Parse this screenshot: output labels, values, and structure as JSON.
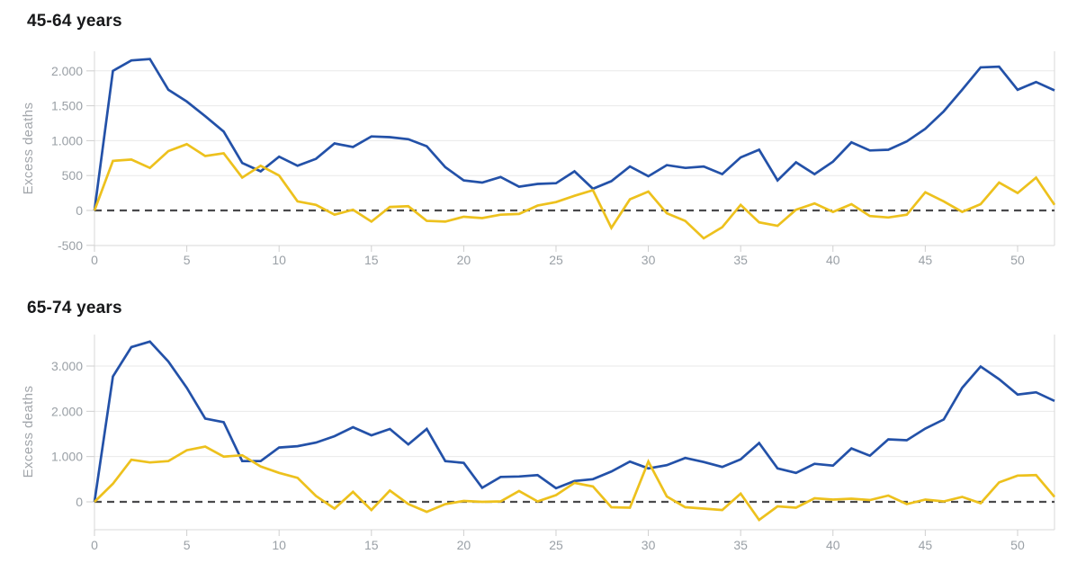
{
  "page": {
    "background": "#ffffff"
  },
  "chart_data": [
    {
      "type": "line",
      "title": "45-64 years",
      "xlabel": "",
      "ylabel": "Excess deaths",
      "x_range": [
        0,
        52
      ],
      "x_ticks": [
        0,
        5,
        10,
        15,
        20,
        25,
        30,
        35,
        40,
        45,
        50
      ],
      "y_ticks": [
        {
          "value": 2000,
          "label": "2.000"
        },
        {
          "value": 1500,
          "label": "1.500"
        },
        {
          "value": 1000,
          "label": "1.000"
        },
        {
          "value": 500,
          "label": "500"
        },
        {
          "value": 0,
          "label": "0"
        },
        {
          "value": -500,
          "label": "-500"
        }
      ],
      "grid_values": [
        500,
        1000,
        1500,
        2000
      ],
      "ylim": [
        -500,
        2220
      ],
      "zero_line_dashed": true,
      "legend": "none",
      "series": [
        {
          "name": "blue",
          "color": "#2351a8",
          "values": [
            0,
            2000,
            2150,
            2170,
            1730,
            1560,
            1350,
            1130,
            680,
            560,
            770,
            640,
            740,
            960,
            910,
            1060,
            1050,
            1020,
            920,
            620,
            430,
            400,
            480,
            340,
            380,
            390,
            560,
            310,
            420,
            630,
            490,
            650,
            610,
            630,
            520,
            760,
            870,
            430,
            690,
            520,
            700,
            975,
            860,
            870,
            990,
            1170,
            1420,
            1730,
            2050,
            2060,
            1730,
            1840,
            1720
          ]
        },
        {
          "name": "yellow",
          "color": "#edc11d",
          "values": [
            0,
            710,
            730,
            610,
            850,
            950,
            780,
            820,
            470,
            640,
            500,
            130,
            80,
            -60,
            10,
            -160,
            50,
            60,
            -150,
            -160,
            -90,
            -110,
            -60,
            -50,
            70,
            120,
            210,
            290,
            -250,
            160,
            270,
            -40,
            -150,
            -400,
            -240,
            80,
            -170,
            -220,
            10,
            100,
            -20,
            90,
            -80,
            -100,
            -60,
            260,
            130,
            -20,
            90,
            400,
            250,
            470,
            80
          ]
        }
      ]
    },
    {
      "type": "line",
      "title": "65-74 years",
      "xlabel": "",
      "ylabel": "Excess deaths",
      "x_range": [
        0,
        52
      ],
      "x_ticks": [
        0,
        5,
        10,
        15,
        20,
        25,
        30,
        35,
        40,
        45,
        50
      ],
      "y_ticks": [
        {
          "value": 3000,
          "label": "3.000"
        },
        {
          "value": 2000,
          "label": "2.000"
        },
        {
          "value": 1000,
          "label": "1.000"
        },
        {
          "value": 0,
          "label": "0"
        }
      ],
      "grid_values": [
        1000,
        2000,
        3000
      ],
      "ylim": [
        -650,
        3700
      ],
      "zero_line_dashed": true,
      "legend": "none",
      "series": [
        {
          "name": "blue",
          "color": "#2351a8",
          "values": [
            0,
            2770,
            3420,
            3540,
            3100,
            2520,
            1840,
            1760,
            900,
            900,
            1200,
            1230,
            1310,
            1450,
            1650,
            1470,
            1610,
            1270,
            1610,
            900,
            860,
            310,
            550,
            560,
            590,
            300,
            460,
            500,
            670,
            890,
            740,
            810,
            970,
            880,
            770,
            940,
            1300,
            740,
            640,
            840,
            800,
            1180,
            1020,
            1380,
            1360,
            1620,
            1820,
            2520,
            2990,
            2710,
            2370,
            2420,
            2230
          ]
        },
        {
          "name": "yellow",
          "color": "#edc11d",
          "values": [
            0,
            400,
            930,
            870,
            900,
            1140,
            1220,
            1000,
            1030,
            780,
            640,
            530,
            130,
            -150,
            220,
            -180,
            250,
            -50,
            -220,
            -50,
            20,
            0,
            10,
            240,
            10,
            150,
            420,
            340,
            -120,
            -130,
            890,
            120,
            -120,
            -150,
            -180,
            180,
            -400,
            -100,
            -130,
            80,
            50,
            70,
            40,
            140,
            -50,
            50,
            10,
            110,
            -30,
            430,
            580,
            590,
            110
          ]
        }
      ]
    }
  ],
  "style": {
    "grid_color": "#e9e9e9",
    "axis_color": "#d8d8d8",
    "tick_color": "#cfcfcf",
    "tick_text_color": "#9aa0a6",
    "zero_line_color": "#4a4a4c",
    "title_color": "#17181a"
  }
}
